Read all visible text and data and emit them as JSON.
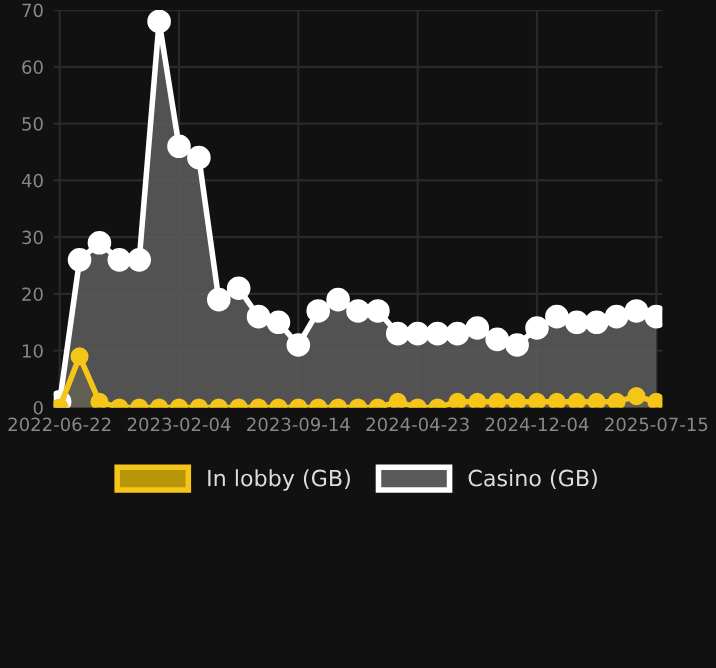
{
  "chart_data": {
    "type": "area",
    "categories": [
      "2022-06-22",
      null,
      null,
      null,
      null,
      null,
      "2023-02-04",
      null,
      null,
      null,
      null,
      null,
      "2023-09-14",
      null,
      null,
      null,
      null,
      null,
      "2024-04-23",
      null,
      null,
      null,
      null,
      null,
      "2024-12-04",
      null,
      null,
      null,
      null,
      null,
      "2025-07-15"
    ],
    "series": [
      {
        "name": "In lobby (GB)",
        "color": "#f5c518",
        "values": [
          0,
          9,
          1,
          0,
          0,
          0,
          0,
          0,
          0,
          0,
          0,
          0,
          0,
          0,
          0,
          0,
          0,
          1,
          0,
          0,
          1,
          1,
          1,
          1,
          1,
          1,
          1,
          1,
          1,
          2,
          1
        ]
      },
      {
        "name": "Casino (GB)",
        "color": "#ffffff",
        "values": [
          1,
          26,
          29,
          26,
          26,
          68,
          46,
          44,
          19,
          21,
          16,
          15,
          11,
          17,
          19,
          17,
          17,
          13,
          13,
          13,
          13,
          14,
          12,
          11,
          14,
          16,
          15,
          15,
          16,
          17,
          16
        ]
      }
    ],
    "ylim": [
      0,
      70
    ],
    "yticks": [
      0,
      10,
      20,
      30,
      40,
      50,
      60,
      70
    ],
    "grid": true,
    "legend": "bottom",
    "marker": "circle"
  }
}
